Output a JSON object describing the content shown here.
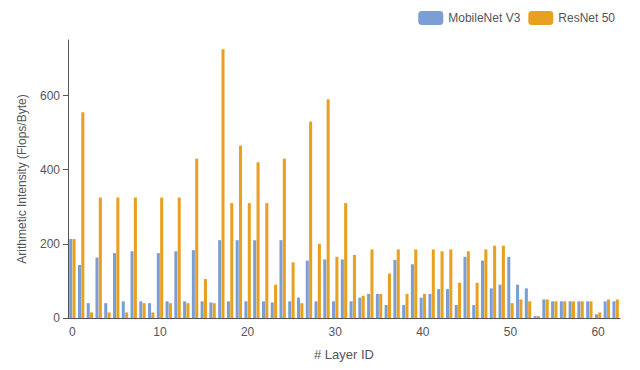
{
  "chart_data": {
    "type": "bar",
    "xlabel": "# Layer ID",
    "ylabel": "Arithmetic Intensity (Flops/Byte)",
    "categories": [
      "0",
      null,
      null,
      null,
      null,
      null,
      null,
      null,
      null,
      null,
      "10",
      null,
      null,
      null,
      null,
      null,
      null,
      null,
      null,
      null,
      "20",
      null,
      null,
      null,
      null,
      null,
      null,
      null,
      null,
      null,
      "30",
      null,
      null,
      null,
      null,
      null,
      null,
      null,
      null,
      null,
      "40",
      null,
      null,
      null,
      null,
      null,
      null,
      null,
      null,
      null,
      "50",
      null,
      null,
      null,
      null,
      null,
      null,
      null,
      null,
      null,
      "60",
      null,
      null
    ],
    "series": [
      {
        "name": "MobileNet V3",
        "color": "#7B9FD4",
        "values": [
          213,
          143,
          40,
          163,
          40,
          175,
          45,
          180,
          45,
          40,
          175,
          45,
          180,
          45,
          183,
          45,
          42,
          210,
          45,
          210,
          45,
          210,
          45,
          42,
          210,
          45,
          55,
          155,
          45,
          158,
          45,
          158,
          45,
          55,
          65,
          65,
          35,
          157,
          35,
          145,
          55,
          65,
          78,
          78,
          35,
          165,
          35,
          155,
          80,
          90,
          165,
          90,
          80,
          5,
          50,
          45,
          45,
          45,
          45,
          45,
          10,
          45,
          45
        ]
      },
      {
        "name": "ResNet 50",
        "color": "#E8A020",
        "values": [
          213,
          555,
          15,
          325,
          15,
          325,
          15,
          325,
          40,
          15,
          325,
          40,
          325,
          40,
          430,
          105,
          40,
          725,
          310,
          465,
          310,
          420,
          310,
          90,
          430,
          150,
          40,
          530,
          200,
          590,
          165,
          310,
          170,
          60,
          185,
          65,
          120,
          185,
          65,
          185,
          65,
          185,
          180,
          185,
          95,
          180,
          95,
          185,
          195,
          195,
          40,
          50,
          45,
          5,
          50,
          45,
          45,
          45,
          45,
          45,
          15,
          50,
          50
        ]
      }
    ],
    "ylim": [
      0,
      750
    ],
    "yticks": [
      0,
      200,
      400,
      600
    ],
    "grid": false,
    "legend": "upper right"
  }
}
